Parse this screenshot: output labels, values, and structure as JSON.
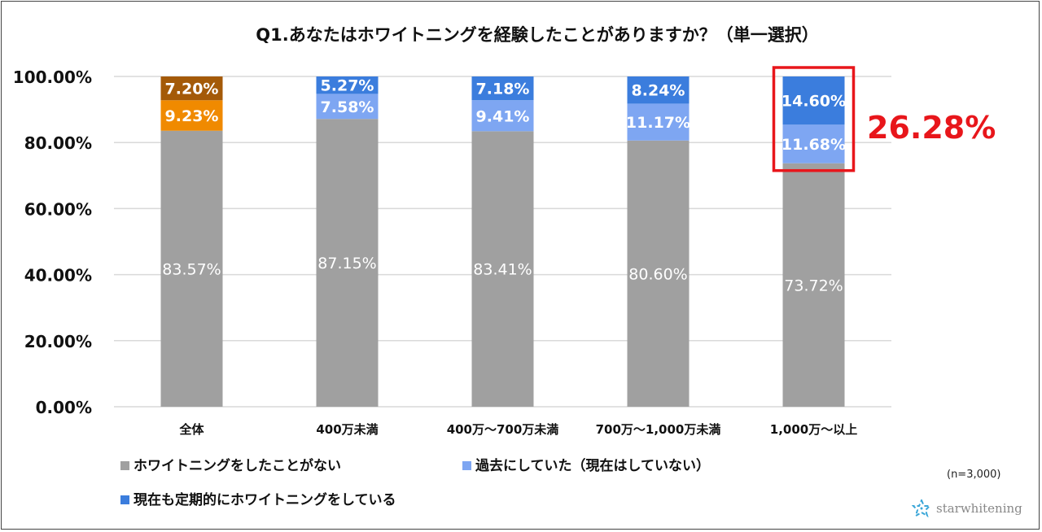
{
  "chart_data": {
    "type": "bar",
    "stacked": true,
    "title": "Q1.あなたはホワイトニングを経験したことがありますか？（単一選択）",
    "categories": [
      "全体",
      "400万未満",
      "400万～700万未満",
      "700万～1,000万未満",
      "1,000万～以上"
    ],
    "series": [
      {
        "name": "ホワイトニングをしたことがない",
        "color": "#a0a0a0",
        "values": [
          83.57,
          87.15,
          83.41,
          80.6,
          73.72
        ],
        "labels": [
          "83.57%",
          "87.15%",
          "83.41%",
          "80.60%",
          "73.72%"
        ]
      },
      {
        "name": "過去にしていた（現在はしていない）",
        "color": "#7ea6f2",
        "values": [
          9.23,
          7.58,
          9.41,
          11.17,
          11.68
        ],
        "labels": [
          "9.23%",
          "7.58%",
          "9.41%",
          "11.17%",
          "11.68%"
        ]
      },
      {
        "name": "現在も定期的にホワイトニングをしている",
        "color": "#3b7ddd",
        "values": [
          7.2,
          5.27,
          7.18,
          8.24,
          14.6
        ],
        "labels": [
          "7.20%",
          "5.27%",
          "7.18%",
          "8.24%",
          "14.60%"
        ]
      }
    ],
    "highlight_colors": {
      "first_bar_past": "#f08a00",
      "first_bar_current": "#a45a08"
    },
    "ylim": [
      0,
      100
    ],
    "yticks": [
      "0.00%",
      "20.00%",
      "40.00%",
      "60.00%",
      "80.00%",
      "100.00%"
    ],
    "grid": true,
    "legend_position": "bottom-left",
    "annotation": {
      "text": "26.28%",
      "color": "#e8161b"
    },
    "note": "(n=3,000)"
  },
  "logo": "starwhitening"
}
